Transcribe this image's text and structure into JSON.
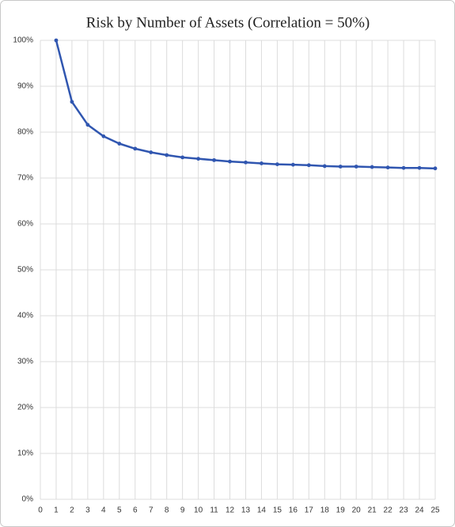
{
  "chart_data": {
    "type": "line",
    "title": "Risk by Number of Assets (Correlation = 50%)",
    "x": [
      1,
      2,
      3,
      4,
      5,
      6,
      7,
      8,
      9,
      10,
      11,
      12,
      13,
      14,
      15,
      16,
      17,
      18,
      19,
      20,
      21,
      22,
      23,
      24,
      25
    ],
    "series": [
      {
        "name": "Risk",
        "color": "#3056b0",
        "values": [
          100,
          86.6,
          81.6,
          79.1,
          77.5,
          76.4,
          75.6,
          75.0,
          74.5,
          74.2,
          73.9,
          73.6,
          73.4,
          73.2,
          73.0,
          72.9,
          72.8,
          72.6,
          72.5,
          72.5,
          72.4,
          72.3,
          72.2,
          72.2,
          72.1
        ]
      }
    ],
    "xlim": [
      0,
      25
    ],
    "xticks": [
      0,
      1,
      2,
      3,
      4,
      5,
      6,
      7,
      8,
      9,
      10,
      11,
      12,
      13,
      14,
      15,
      16,
      17,
      18,
      19,
      20,
      21,
      22,
      23,
      24,
      25
    ],
    "ylim": [
      0,
      100
    ],
    "yticks": [
      {
        "value": 0,
        "label": "0%"
      },
      {
        "value": 10,
        "label": "10%"
      },
      {
        "value": 20,
        "label": "20%"
      },
      {
        "value": 30,
        "label": "30%"
      },
      {
        "value": 40,
        "label": "40%"
      },
      {
        "value": 50,
        "label": "50%"
      },
      {
        "value": 60,
        "label": "60%"
      },
      {
        "value": 70,
        "label": "70%"
      },
      {
        "value": 80,
        "label": "80%"
      },
      {
        "value": 90,
        "label": "90%"
      },
      {
        "value": 100,
        "label": "100%"
      }
    ],
    "grid": true
  }
}
